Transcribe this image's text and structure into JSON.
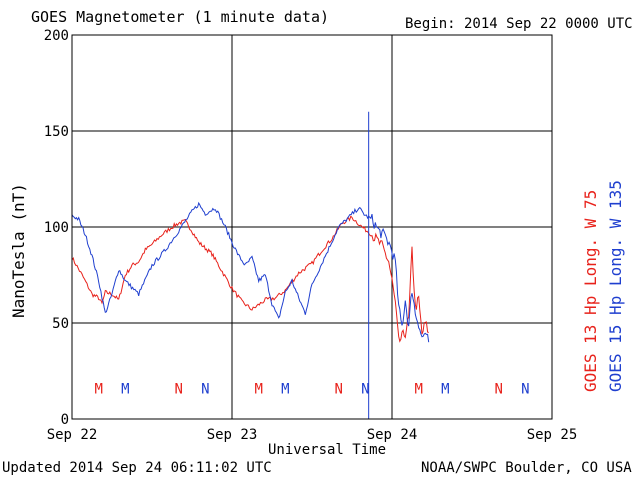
{
  "header": {
    "title": "GOES Magnetometer (1 minute data)",
    "begin": "Begin:  2014 Sep 22 0000 UTC"
  },
  "footer": {
    "updated": "Updated 2014 Sep 24 06:11:02 UTC",
    "source": "NOAA/SWPC Boulder, CO USA"
  },
  "colors": {
    "goes13": "#e8221b",
    "goes15": "#1f3fcf",
    "grid": "#000000"
  },
  "chart_data": {
    "type": "line",
    "xlabel": "Universal Time",
    "ylabel": "NanoTesla (nT)",
    "ylim": [
      0,
      200
    ],
    "yticks": [
      0,
      50,
      100,
      150,
      200
    ],
    "xlim": [
      "2014-09-22T00:00",
      "2014-09-25T00:00"
    ],
    "xticks": [
      "Sep 22",
      "Sep 23",
      "Sep 24",
      "Sep 25"
    ],
    "series": [
      {
        "name": "GOES 13 Hp  Long. W 75",
        "color": "#e8221b",
        "x": [
          "2014-09-22T00:00",
          "2014-09-22T01:30",
          "2014-09-22T03:00",
          "2014-09-22T04:00",
          "2014-09-22T04:30",
          "2014-09-22T05:00",
          "2014-09-22T06:00",
          "2014-09-22T07:00",
          "2014-09-22T08:00",
          "2014-09-22T09:00",
          "2014-09-22T10:00",
          "2014-09-22T11:00",
          "2014-09-22T12:00",
          "2014-09-22T13:30",
          "2014-09-22T15:00",
          "2014-09-22T16:00",
          "2014-09-22T17:00",
          "2014-09-22T18:00",
          "2014-09-22T19:00",
          "2014-09-22T20:00",
          "2014-09-22T21:00",
          "2014-09-22T22:00",
          "2014-09-23T00:00",
          "2014-09-23T01:30",
          "2014-09-23T03:00",
          "2014-09-23T05:00",
          "2014-09-23T06:30",
          "2014-09-23T08:00",
          "2014-09-23T10:00",
          "2014-09-23T12:00",
          "2014-09-23T13:30",
          "2014-09-23T15:00",
          "2014-09-23T16:30",
          "2014-09-23T18:00",
          "2014-09-23T19:30",
          "2014-09-23T21:00",
          "2014-09-23T22:30",
          "2014-09-23T23:30",
          "2014-09-24T00:00",
          "2014-09-24T00:30",
          "2014-09-24T01:00",
          "2014-09-24T02:00",
          "2014-09-24T02:30",
          "2014-09-24T03:00",
          "2014-09-24T03:30",
          "2014-09-24T04:00",
          "2014-09-24T04:30",
          "2014-09-24T05:00",
          "2014-09-24T05:30"
        ],
        "values": [
          84,
          75,
          65,
          63,
          60,
          66,
          65,
          62,
          75,
          80,
          82,
          88,
          91,
          96,
          100,
          102,
          103,
          98,
          92,
          89,
          86,
          80,
          68,
          61,
          57,
          62,
          63,
          67,
          76,
          81,
          88,
          94,
          102,
          105,
          100,
          96,
          90,
          82,
          72,
          60,
          40,
          45,
          52,
          88,
          58,
          62,
          44,
          50,
          45
        ]
      },
      {
        "name": "GOES 15 Hp  Long. W 135",
        "color": "#1f3fcf",
        "x": [
          "2014-09-22T00:00",
          "2014-09-22T01:00",
          "2014-09-22T02:00",
          "2014-09-22T03:00",
          "2014-09-22T04:00",
          "2014-09-22T05:00",
          "2014-09-22T06:00",
          "2014-09-22T07:00",
          "2014-09-22T08:00",
          "2014-09-22T10:00",
          "2014-09-22T12:00",
          "2014-09-22T14:00",
          "2014-09-22T16:00",
          "2014-09-22T18:00",
          "2014-09-22T19:00",
          "2014-09-22T20:00",
          "2014-09-22T21:30",
          "2014-09-22T23:00",
          "2014-09-23T00:00",
          "2014-09-23T01:00",
          "2014-09-23T02:00",
          "2014-09-23T03:00",
          "2014-09-23T04:00",
          "2014-09-23T05:00",
          "2014-09-23T06:00",
          "2014-09-23T07:00",
          "2014-09-23T08:00",
          "2014-09-23T09:00",
          "2014-09-23T10:00",
          "2014-09-23T11:00",
          "2014-09-23T12:00",
          "2014-09-23T14:00",
          "2014-09-23T16:00",
          "2014-09-23T17:30",
          "2014-09-23T19:00",
          "2014-09-23T20:00",
          "2014-09-23T21:00",
          "2014-09-23T22:00",
          "2014-09-23T23:00",
          "2014-09-23T23:45",
          "2014-09-24T00:30",
          "2014-09-24T01:00",
          "2014-09-24T01:30",
          "2014-09-24T02:00",
          "2014-09-24T02:30",
          "2014-09-24T03:00",
          "2014-09-24T03:30",
          "2014-09-24T04:00",
          "2014-09-24T04:30",
          "2014-09-24T05:00",
          "2014-09-24T05:30"
        ],
        "values": [
          106,
          104,
          96,
          85,
          72,
          55,
          65,
          78,
          72,
          65,
          80,
          88,
          98,
          108,
          112,
          107,
          110,
          100,
          92,
          85,
          80,
          84,
          72,
          75,
          60,
          52,
          66,
          72,
          63,
          55,
          70,
          85,
          100,
          105,
          110,
          106,
          104,
          98,
          95,
          90,
          82,
          58,
          48,
          62,
          48,
          68,
          55,
          50,
          42,
          45,
          40
        ]
      }
    ],
    "annotations": {
      "rows": [
        {
          "label": "M",
          "x": "2014-09-22T04:00",
          "color": "#e8221b"
        },
        {
          "label": "M",
          "x": "2014-09-22T08:00",
          "color": "#1f3fcf"
        },
        {
          "label": "N",
          "x": "2014-09-22T16:00",
          "color": "#e8221b"
        },
        {
          "label": "N",
          "x": "2014-09-22T20:00",
          "color": "#1f3fcf"
        },
        {
          "label": "M",
          "x": "2014-09-23T04:00",
          "color": "#e8221b"
        },
        {
          "label": "M",
          "x": "2014-09-23T08:00",
          "color": "#1f3fcf"
        },
        {
          "label": "N",
          "x": "2014-09-23T16:00",
          "color": "#e8221b"
        },
        {
          "label": "N",
          "x": "2014-09-23T20:00",
          "color": "#1f3fcf"
        },
        {
          "label": "M",
          "x": "2014-09-24T04:00",
          "color": "#e8221b"
        },
        {
          "label": "M",
          "x": "2014-09-24T08:00",
          "color": "#1f3fcf"
        },
        {
          "label": "N",
          "x": "2014-09-24T16:00",
          "color": "#e8221b"
        },
        {
          "label": "N",
          "x": "2014-09-24T20:00",
          "color": "#1f3fcf"
        }
      ],
      "value": 16,
      "vlines": [
        {
          "x": "2014-09-23T20:30",
          "color": "#1f3fcf"
        }
      ]
    },
    "grid": true
  }
}
